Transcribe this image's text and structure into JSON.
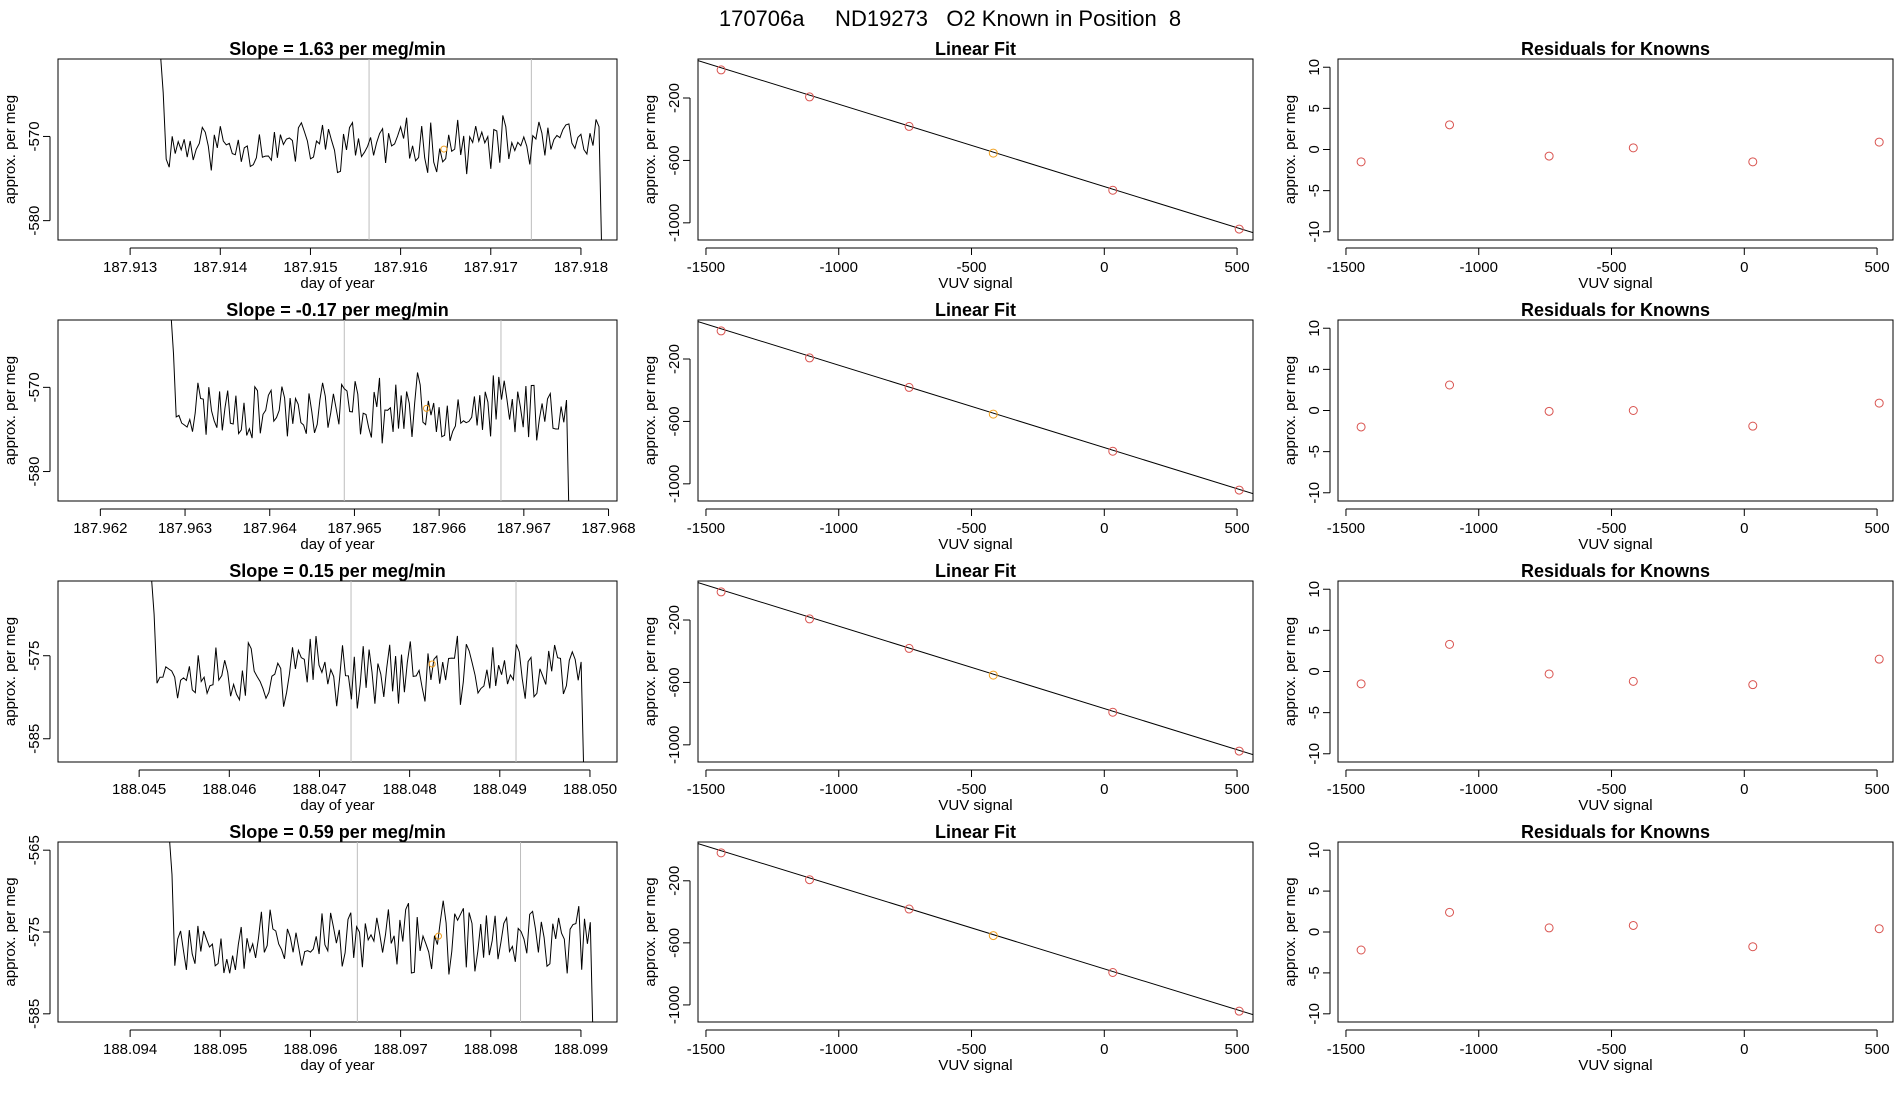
{
  "main_title": "170706a     ND19273   O2 Known in Position  8",
  "colors": {
    "known_point": "#d9534f",
    "highlight_point": "#f0a020",
    "trace": "#000000",
    "marker_line": "#bdbdbd"
  },
  "chart_data": [
    {
      "type": "line",
      "title": "Slope =  1.63  per meg/min",
      "xlabel": "day of year",
      "ylabel": "approx. per meg",
      "xlim": [
        187.9122,
        187.9184
      ],
      "ylim": [
        -582.3,
        -560.8
      ],
      "xticks": [
        "187.913",
        "187.914",
        "187.915",
        "187.916",
        "187.917",
        "187.918"
      ],
      "yticks": [
        "-570",
        "-580"
      ],
      "marker_lines_x": [
        187.91565,
        187.91745
      ],
      "start_x": 187.9133,
      "end_x": 187.9183,
      "highlight_point": {
        "x": 187.91648,
        "y": -571.5
      },
      "seed": 11,
      "base": -571.0,
      "amp": 2.6
    },
    {
      "type": "line",
      "title": "Slope =  -0.17  per meg/min",
      "xlabel": "day of year",
      "ylabel": "approx. per meg",
      "xlim": [
        187.9615,
        187.9681
      ],
      "ylim": [
        -583.5,
        -562.0
      ],
      "xticks": [
        "187.962",
        "187.963",
        "187.964",
        "187.965",
        "187.966",
        "187.967",
        "187.968"
      ],
      "yticks": [
        "-570",
        "-580"
      ],
      "marker_lines_x": [
        187.96488,
        187.96673
      ],
      "start_x": 187.9628,
      "end_x": 187.9676,
      "highlight_point": {
        "x": 187.96585,
        "y": -572.5
      },
      "seed": 23,
      "base": -572.5,
      "amp": 3.2
    },
    {
      "type": "line",
      "title": "Slope =  0.15  per meg/min",
      "xlabel": "day of year",
      "ylabel": "approx. per meg",
      "xlim": [
        188.0441,
        188.0503
      ],
      "ylim": [
        -587.8,
        -566.0
      ],
      "xticks": [
        "188.045",
        "188.046",
        "188.047",
        "188.048",
        "188.049",
        "188.050"
      ],
      "yticks": [
        "-575",
        "-585"
      ],
      "marker_lines_x": [
        188.04735,
        188.04918
      ],
      "start_x": 188.0451,
      "end_x": 188.05,
      "highlight_point": {
        "x": 188.04825,
        "y": -576.0
      },
      "seed": 37,
      "base": -577.0,
      "amp": 3.4
    },
    {
      "type": "line",
      "title": "Slope =  0.59  per meg/min",
      "xlabel": "day of year",
      "ylabel": "approx. per meg",
      "xlim": [
        188.0932,
        188.0994
      ],
      "ylim": [
        -586.0,
        -564.0
      ],
      "xticks": [
        "188.094",
        "188.095",
        "188.096",
        "188.097",
        "188.098",
        "188.099"
      ],
      "yticks": [
        "-565",
        "-575",
        "-585"
      ],
      "marker_lines_x": [
        188.09652,
        188.09833
      ],
      "start_x": 188.0944,
      "end_x": 188.0992,
      "highlight_point": {
        "x": 188.09742,
        "y": -575.5
      },
      "seed": 53,
      "base": -576.0,
      "amp": 3.6
    },
    {
      "type": "scatter",
      "title": "Linear Fit",
      "xlabel": "VUV signal",
      "ylabel": "approx. per meg",
      "xlim": [
        -1530,
        560
      ],
      "ylim": [
        -1110,
        50
      ],
      "xticks": [
        "-1500",
        "-1000",
        "-500",
        "0",
        "500"
      ],
      "yticks": [
        "-200",
        "-600",
        "-1000"
      ],
      "points_x": [
        -1443,
        -1110,
        -735,
        -418,
        32,
        508
      ],
      "points_y": [
        -20,
        -193,
        -382,
        -553,
        -791,
        -1040
      ],
      "highlight_index": 3,
      "fit_line": {
        "x": [
          -1530,
          560
        ],
        "y": [
          40,
          -1063
        ]
      }
    },
    {
      "type": "scatter",
      "title": "Linear Fit",
      "xlabel": "VUV signal",
      "ylabel": "approx. per meg",
      "xlim": [
        -1530,
        560
      ],
      "ylim": [
        -1110,
        50
      ],
      "xticks": [
        "-1500",
        "-1000",
        "-500",
        "0",
        "500"
      ],
      "yticks": [
        "-200",
        "-600",
        "-1000"
      ],
      "points_x": [
        -1443,
        -1110,
        -735,
        -418,
        32,
        508
      ],
      "points_y": [
        -20,
        -193,
        -382,
        -553,
        -791,
        -1040
      ],
      "highlight_index": 3,
      "fit_line": {
        "x": [
          -1530,
          560
        ],
        "y": [
          40,
          -1063
        ]
      }
    },
    {
      "type": "scatter",
      "title": "Linear Fit",
      "xlabel": "VUV signal",
      "ylabel": "approx. per meg",
      "xlim": [
        -1530,
        560
      ],
      "ylim": [
        -1110,
        50
      ],
      "xticks": [
        "-1500",
        "-1000",
        "-500",
        "0",
        "500"
      ],
      "yticks": [
        "-200",
        "-600",
        "-1000"
      ],
      "points_x": [
        -1443,
        -1110,
        -735,
        -418,
        32,
        508
      ],
      "points_y": [
        -20,
        -193,
        -382,
        -553,
        -791,
        -1040
      ],
      "highlight_index": 3,
      "fit_line": {
        "x": [
          -1530,
          560
        ],
        "y": [
          40,
          -1063
        ]
      }
    },
    {
      "type": "scatter",
      "title": "Linear Fit",
      "xlabel": "VUV signal",
      "ylabel": "approx. per meg",
      "xlim": [
        -1530,
        560
      ],
      "ylim": [
        -1110,
        50
      ],
      "xticks": [
        "-1500",
        "-1000",
        "-500",
        "0",
        "500"
      ],
      "yticks": [
        "-200",
        "-600",
        "-1000"
      ],
      "points_x": [
        -1443,
        -1110,
        -735,
        -418,
        32,
        508
      ],
      "points_y": [
        -20,
        -193,
        -382,
        -553,
        -791,
        -1040
      ],
      "highlight_index": 3,
      "fit_line": {
        "x": [
          -1530,
          560
        ],
        "y": [
          40,
          -1063
        ]
      }
    },
    {
      "type": "scatter",
      "title": "Residuals for Knowns",
      "xlabel": "VUV signal",
      "ylabel": "approx. per meg",
      "xlim": [
        -1530,
        560
      ],
      "ylim": [
        -11,
        11
      ],
      "xticks": [
        "-1500",
        "-1000",
        "-500",
        "0",
        "500"
      ],
      "yticks": [
        "-10",
        "-5",
        "0",
        "5",
        "10"
      ],
      "points_x": [
        -1443,
        -1110,
        -735,
        -418,
        32,
        508
      ],
      "points_y": [
        -1.5,
        3.0,
        -0.8,
        0.2,
        -1.5,
        0.9
      ]
    },
    {
      "type": "scatter",
      "title": "Residuals for Knowns",
      "xlabel": "VUV signal",
      "ylabel": "approx. per meg",
      "xlim": [
        -1530,
        560
      ],
      "ylim": [
        -11,
        11
      ],
      "xticks": [
        "-1500",
        "-1000",
        "-500",
        "0",
        "500"
      ],
      "yticks": [
        "-10",
        "-5",
        "0",
        "5",
        "10"
      ],
      "points_x": [
        -1443,
        -1110,
        -735,
        -418,
        32,
        508
      ],
      "points_y": [
        -2.0,
        3.1,
        -0.1,
        0.0,
        -1.9,
        0.9
      ]
    },
    {
      "type": "scatter",
      "title": "Residuals for Knowns",
      "xlabel": "VUV signal",
      "ylabel": "approx. per meg",
      "xlim": [
        -1530,
        560
      ],
      "ylim": [
        -11,
        11
      ],
      "xticks": [
        "-1500",
        "-1000",
        "-500",
        "0",
        "500"
      ],
      "yticks": [
        "-10",
        "-5",
        "0",
        "5",
        "10"
      ],
      "points_x": [
        -1443,
        -1110,
        -735,
        -418,
        32,
        508
      ],
      "points_y": [
        -1.5,
        3.3,
        -0.3,
        -1.2,
        -1.6,
        1.5
      ]
    },
    {
      "type": "scatter",
      "title": "Residuals for Knowns",
      "xlabel": "VUV signal",
      "ylabel": "approx. per meg",
      "xlim": [
        -1530,
        560
      ],
      "ylim": [
        -11,
        11
      ],
      "xticks": [
        "-1500",
        "-1000",
        "-500",
        "0",
        "500"
      ],
      "yticks": [
        "-10",
        "-5",
        "0",
        "5",
        "10"
      ],
      "points_x": [
        -1443,
        -1110,
        -735,
        -418,
        32,
        508
      ],
      "points_y": [
        -2.2,
        2.4,
        0.5,
        0.8,
        -1.8,
        0.4
      ]
    }
  ]
}
